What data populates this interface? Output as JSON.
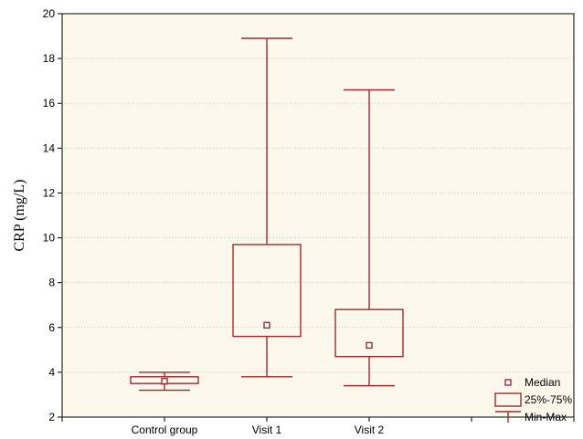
{
  "chart_data": {
    "type": "box",
    "title": "",
    "xlabel": "",
    "ylabel": "CRP (mg/L)",
    "ylim": [
      2,
      20
    ],
    "yticks": [
      2,
      4,
      6,
      8,
      10,
      12,
      14,
      16,
      18,
      20
    ],
    "grid": "horizontal-dotted",
    "legend_placement": "bottom-right",
    "colors": {
      "plot_background": "#fdf8ec",
      "box": "#9e2a2f",
      "grid": "#c8c8c8"
    },
    "legend": {
      "median": "Median",
      "box": "25%-75%",
      "whisker": "Min-Max"
    },
    "categories": [
      "Control group",
      "Visit 1",
      "Visit 2"
    ],
    "boxes": [
      {
        "min": 3.2,
        "q1": 3.5,
        "median": 3.6,
        "q3": 3.8,
        "max": 4.0
      },
      {
        "min": 3.8,
        "q1": 5.6,
        "median": 6.1,
        "q3": 9.7,
        "max": 18.9
      },
      {
        "min": 3.4,
        "q1": 4.7,
        "median": 5.2,
        "q3": 6.8,
        "max": 16.6
      }
    ]
  }
}
